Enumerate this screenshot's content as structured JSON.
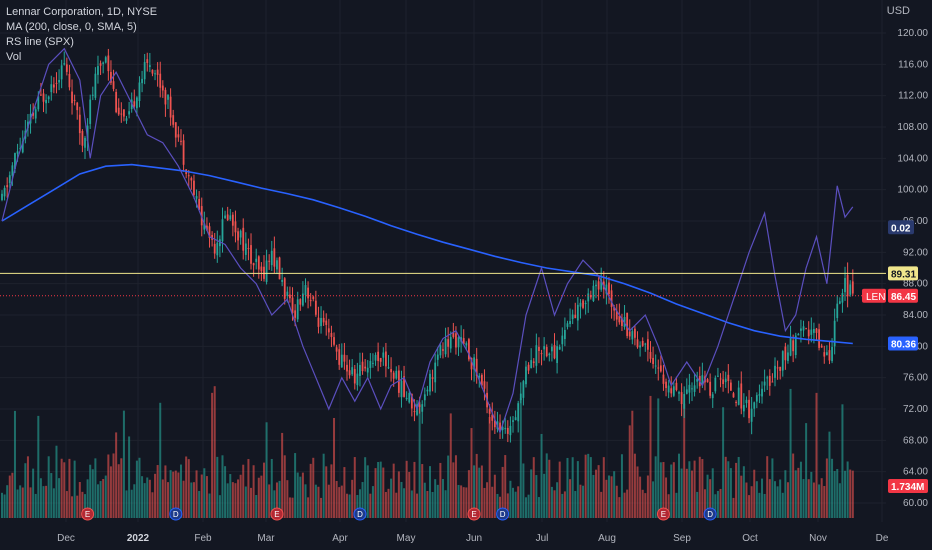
{
  "legend": {
    "title": "Lennar Corporation, 1D, NYSE",
    "ma": "MA (200, close, 0, SMA, 5)",
    "rs": "RS line (SPX)",
    "vol": "Vol"
  },
  "currency": "USD",
  "colors": {
    "background": "#131722",
    "up": "#26a69a",
    "down": "#ef5350",
    "ma": "#2962ff",
    "rs": "#5b4fbf",
    "hline": "#f0e68c",
    "price_line": "#f23645"
  },
  "chart_data": {
    "type": "candlestick",
    "title": "Lennar Corporation, 1D, NYSE",
    "ylabel": "USD",
    "ylim": [
      58,
      122
    ],
    "y_ticks": [
      "120.00",
      "116.00",
      "112.00",
      "108.00",
      "104.00",
      "100.00",
      "96.00",
      "92.00",
      "88.00",
      "84.00",
      "80.00",
      "76.00",
      "72.00",
      "68.00",
      "64.00",
      "60.00"
    ],
    "x_ticks": [
      "Dec",
      "2022",
      "Feb",
      "Mar",
      "Apr",
      "May",
      "Jun",
      "Jul",
      "Aug",
      "Sep",
      "Oct",
      "Nov",
      "De"
    ],
    "close_path": [
      [
        0,
        98.5
      ],
      [
        5,
        104
      ],
      [
        10,
        108
      ],
      [
        14,
        111
      ],
      [
        20,
        114
      ],
      [
        24,
        116
      ],
      [
        27,
        112
      ],
      [
        31,
        106
      ],
      [
        36,
        114
      ],
      [
        40,
        117.5
      ],
      [
        44,
        111
      ],
      [
        48,
        108
      ],
      [
        53,
        114
      ],
      [
        57,
        116.5
      ],
      [
        62,
        113
      ],
      [
        66,
        109
      ],
      [
        72,
        102
      ],
      [
        77,
        96
      ],
      [
        82,
        93
      ],
      [
        87,
        97
      ],
      [
        92,
        94
      ],
      [
        96,
        91
      ],
      [
        100,
        89
      ],
      [
        104,
        92
      ],
      [
        108,
        88
      ],
      [
        112,
        84
      ],
      [
        117,
        88
      ],
      [
        121,
        84
      ],
      [
        126,
        81
      ],
      [
        131,
        78
      ],
      [
        136,
        76
      ],
      [
        141,
        78
      ],
      [
        146,
        79
      ],
      [
        150,
        77
      ],
      [
        155,
        74
      ],
      [
        160,
        72
      ],
      [
        165,
        76
      ],
      [
        170,
        80
      ],
      [
        175,
        81
      ],
      [
        180,
        79
      ],
      [
        184,
        76
      ],
      [
        190,
        70
      ],
      [
        194,
        68.5
      ],
      [
        199,
        73
      ],
      [
        203,
        78
      ],
      [
        208,
        80
      ],
      [
        213,
        79
      ],
      [
        218,
        83
      ],
      [
        223,
        85
      ],
      [
        228,
        88
      ],
      [
        233,
        87
      ],
      [
        238,
        84
      ],
      [
        244,
        81
      ],
      [
        249,
        80
      ],
      [
        253,
        77
      ],
      [
        258,
        74
      ],
      [
        263,
        73
      ],
      [
        268,
        76
      ],
      [
        273,
        74.5
      ],
      [
        278,
        76
      ],
      [
        283,
        74
      ],
      [
        288,
        72
      ],
      [
        293,
        74
      ],
      [
        298,
        77
      ],
      [
        303,
        79.5
      ],
      [
        307,
        81
      ],
      [
        312,
        82
      ],
      [
        316,
        80
      ],
      [
        319,
        78.5
      ],
      [
        322,
        86
      ],
      [
        325,
        88
      ],
      [
        328,
        86.45
      ]
    ],
    "ma_path": [
      [
        0,
        96
      ],
      [
        10,
        98
      ],
      [
        20,
        100
      ],
      [
        30,
        102
      ],
      [
        40,
        103
      ],
      [
        50,
        103.2
      ],
      [
        60,
        102.8
      ],
      [
        70,
        102.4
      ],
      [
        80,
        101.8
      ],
      [
        90,
        101
      ],
      [
        100,
        100.2
      ],
      [
        110,
        99.5
      ],
      [
        120,
        98.7
      ],
      [
        130,
        97.7
      ],
      [
        140,
        96.6
      ],
      [
        150,
        95.4
      ],
      [
        160,
        94.3
      ],
      [
        170,
        93.3
      ],
      [
        180,
        92.4
      ],
      [
        190,
        91.5
      ],
      [
        200,
        90.7
      ],
      [
        210,
        90
      ],
      [
        220,
        89.5
      ],
      [
        230,
        89
      ],
      [
        240,
        88
      ],
      [
        250,
        86.8
      ],
      [
        260,
        85.4
      ],
      [
        270,
        84.2
      ],
      [
        280,
        83
      ],
      [
        290,
        82
      ],
      [
        300,
        81.3
      ],
      [
        310,
        80.9
      ],
      [
        320,
        80.6
      ],
      [
        328,
        80.36
      ]
    ],
    "rs_path": [
      [
        0,
        96
      ],
      [
        6,
        104
      ],
      [
        12,
        110
      ],
      [
        18,
        116
      ],
      [
        24,
        118
      ],
      [
        30,
        114
      ],
      [
        34,
        104
      ],
      [
        38,
        112
      ],
      [
        44,
        115
      ],
      [
        50,
        111
      ],
      [
        56,
        107
      ],
      [
        62,
        106
      ],
      [
        68,
        103
      ],
      [
        74,
        99
      ],
      [
        80,
        94
      ],
      [
        86,
        93
      ],
      [
        92,
        90
      ],
      [
        98,
        88
      ],
      [
        104,
        84
      ],
      [
        110,
        86
      ],
      [
        116,
        80
      ],
      [
        121,
        76
      ],
      [
        126,
        72
      ],
      [
        131,
        76
      ],
      [
        136,
        73
      ],
      [
        141,
        76
      ],
      [
        146,
        72
      ],
      [
        150,
        75
      ],
      [
        155,
        76
      ],
      [
        160,
        72
      ],
      [
        165,
        78
      ],
      [
        170,
        81
      ],
      [
        175,
        82
      ],
      [
        180,
        79
      ],
      [
        186,
        74
      ],
      [
        192,
        69
      ],
      [
        197,
        74
      ],
      [
        202,
        84
      ],
      [
        208,
        90
      ],
      [
        213,
        84
      ],
      [
        218,
        88
      ],
      [
        224,
        91
      ],
      [
        230,
        89
      ],
      [
        236,
        85
      ],
      [
        242,
        82
      ],
      [
        248,
        84
      ],
      [
        253,
        80
      ],
      [
        258,
        75
      ],
      [
        264,
        78
      ],
      [
        270,
        75
      ],
      [
        276,
        80
      ],
      [
        282,
        86
      ],
      [
        288,
        92
      ],
      [
        294,
        97
      ],
      [
        298,
        89
      ],
      [
        302,
        82
      ],
      [
        306,
        84
      ],
      [
        310,
        90
      ],
      [
        314,
        94
      ],
      [
        318,
        88
      ],
      [
        322,
        100.5
      ],
      [
        325,
        96.5
      ],
      [
        328,
        97.8
      ]
    ],
    "y_range_open": 96,
    "highlights": {
      "hline": {
        "value": 89.31,
        "label": "89.31"
      },
      "rs_label": {
        "value": 0.02,
        "label": "0.02"
      },
      "last_price": {
        "value": 86.45,
        "label": "86.45",
        "ticker": "LEN"
      },
      "ma_label": {
        "value": 80.36,
        "label": "80.36"
      },
      "volume_label": {
        "label": "1.734M"
      }
    },
    "volume": {
      "max": 8,
      "events": [
        {
          "x": 33,
          "type": "E"
        },
        {
          "x": 67,
          "type": "D"
        },
        {
          "x": 106,
          "type": "E"
        },
        {
          "x": 138,
          "type": "D"
        },
        {
          "x": 182,
          "type": "E"
        },
        {
          "x": 193,
          "type": "D"
        },
        {
          "x": 255,
          "type": "E"
        },
        {
          "x": 273,
          "type": "D"
        }
      ]
    }
  },
  "events_text": {
    "E": "E",
    "D": "D"
  }
}
